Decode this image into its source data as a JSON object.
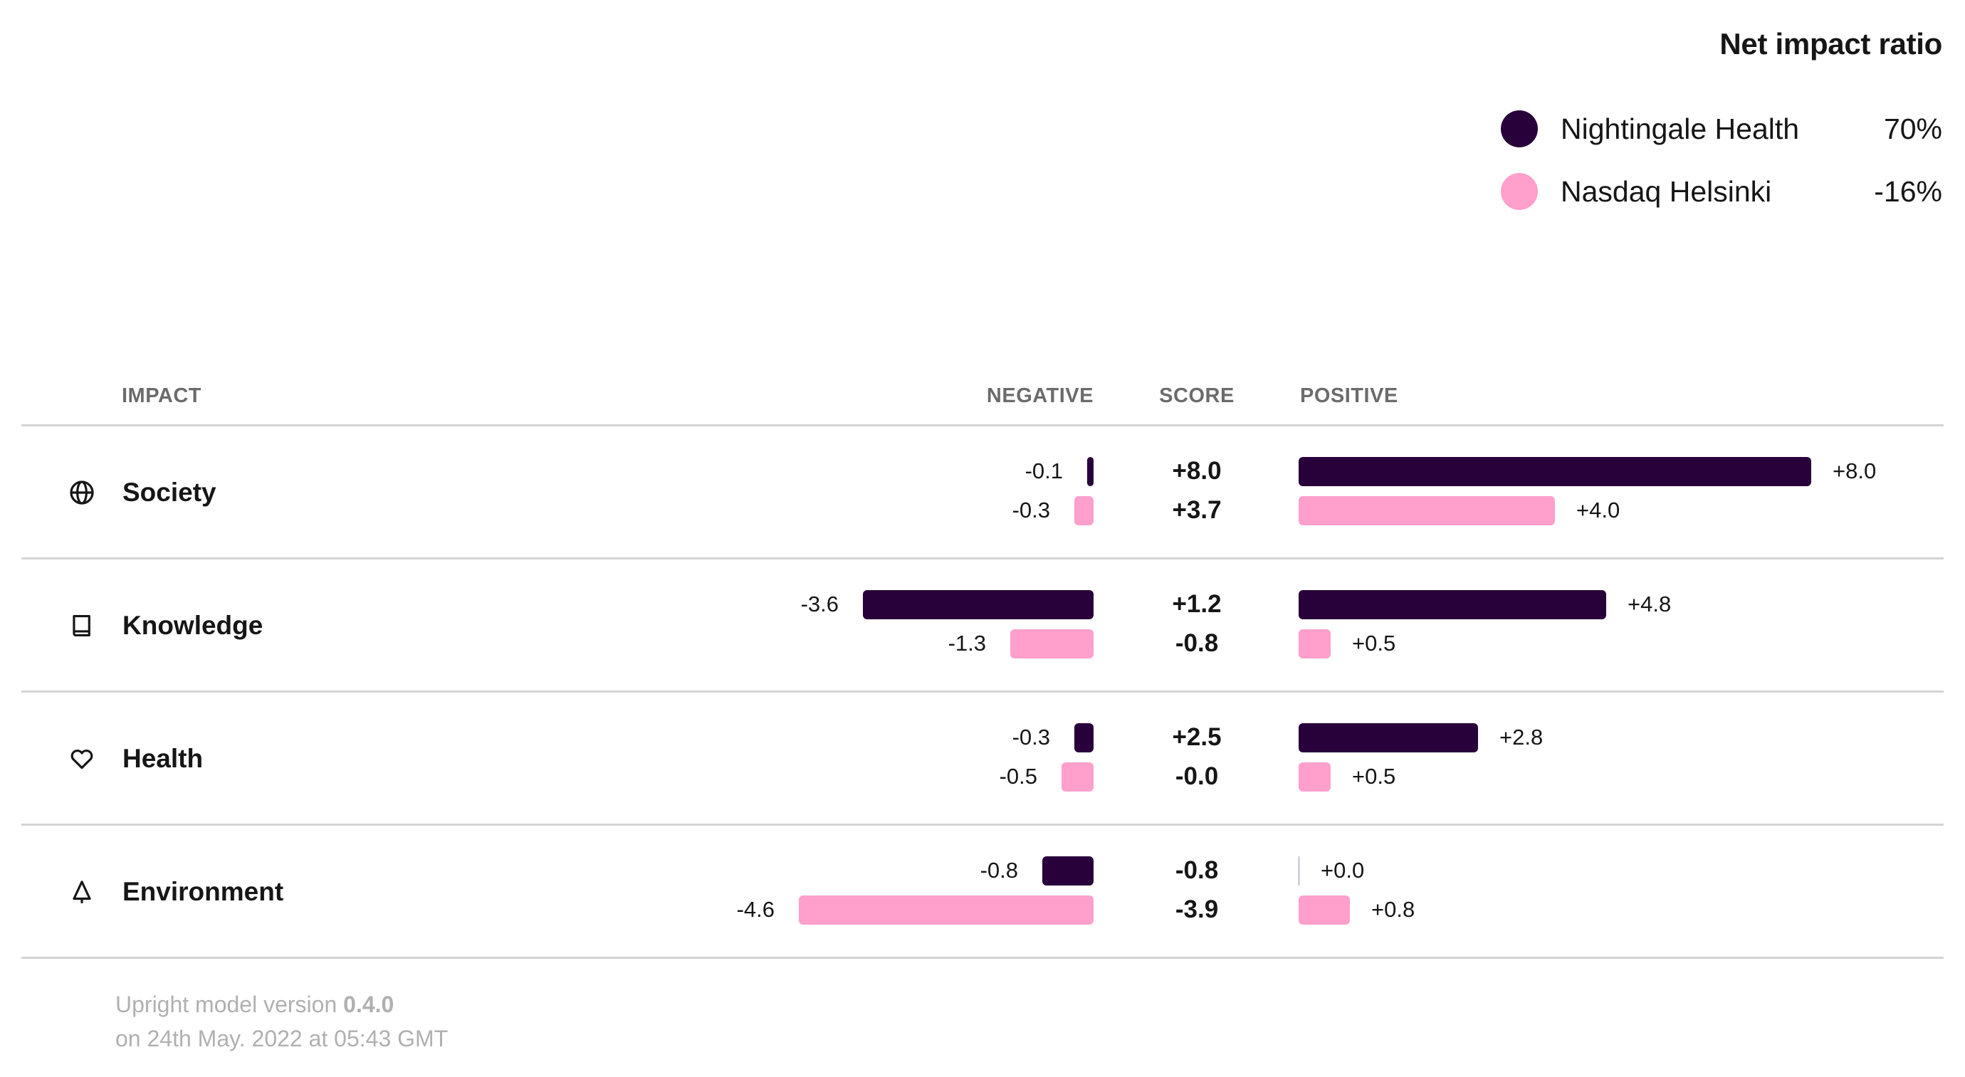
{
  "net_impact": {
    "title": "Net impact ratio",
    "legend": [
      {
        "name": "Nightingale Health",
        "value": "70%",
        "color": "#28003a"
      },
      {
        "name": "Nasdaq Helsinki",
        "value": "-16%",
        "color": "#ff9fcc"
      }
    ]
  },
  "table": {
    "headers": {
      "impact": "IMPACT",
      "negative": "NEGATIVE",
      "score": "SCORE",
      "positive": "POSITIVE"
    }
  },
  "chart_data": {
    "type": "bar",
    "orientation": "horizontal-diverging",
    "title": "Net impact ratio",
    "categories": [
      "Society",
      "Knowledge",
      "Health",
      "Environment"
    ],
    "category_icons": [
      "globe-icon",
      "book-icon",
      "heart-icon",
      "tree-icon"
    ],
    "series": [
      {
        "name": "Nightingale Health",
        "color": "#28003a",
        "net_impact_ratio": "70%",
        "negative": [
          -0.1,
          -3.6,
          -0.3,
          -0.8
        ],
        "score": [
          8.0,
          1.2,
          2.5,
          -0.8
        ],
        "positive": [
          8.0,
          4.8,
          2.8,
          0.0
        ],
        "negative_labels": [
          "-0.1",
          "-3.6",
          "-0.3",
          "-0.8"
        ],
        "score_labels": [
          "+8.0",
          "+1.2",
          "+2.5",
          "-0.8"
        ],
        "positive_labels": [
          "+8.0",
          "+4.8",
          "+2.8",
          "+0.0"
        ]
      },
      {
        "name": "Nasdaq Helsinki",
        "color": "#ff9fcc",
        "net_impact_ratio": "-16%",
        "negative": [
          -0.3,
          -1.3,
          -0.5,
          -4.6
        ],
        "score": [
          3.7,
          -0.8,
          -0.0,
          -3.9
        ],
        "positive": [
          4.0,
          0.5,
          0.5,
          0.8
        ],
        "negative_labels": [
          "-0.3",
          "-1.3",
          "-0.5",
          "-4.6"
        ],
        "score_labels": [
          "+3.7",
          "-0.8",
          "-0.0",
          "-3.9"
        ],
        "positive_labels": [
          "+4.0",
          "+0.5",
          "+0.5",
          "+0.8"
        ]
      }
    ],
    "xlabel": "",
    "ylabel": "",
    "legend": "top-right"
  },
  "footer": {
    "version_prefix": "Upright model version ",
    "version": "0.4.0",
    "timestamp": "on 24th May. 2022 at 05:43 GMT"
  }
}
